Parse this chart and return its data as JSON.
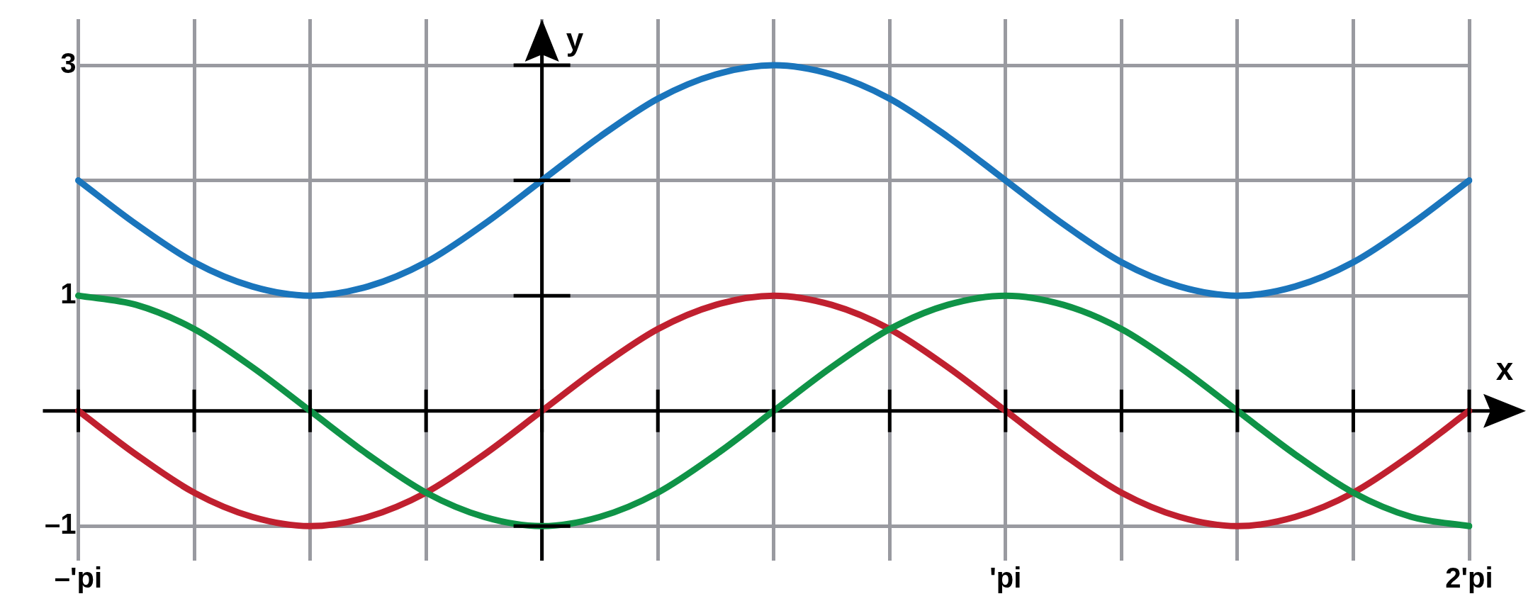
{
  "chart_data": {
    "type": "line",
    "xlabel": "x",
    "ylabel": "y",
    "categories": [
      "–'pi",
      null,
      null,
      null,
      null,
      null,
      null,
      null,
      null,
      null,
      null,
      null,
      null,
      null,
      null,
      null,
      "'pi",
      null,
      null,
      null,
      null,
      null,
      null,
      null,
      "2'pi"
    ],
    "series": [
      {
        "color": "#1a75bc",
        "values": [
          2,
          1.62,
          1.29,
          1.08,
          1,
          1.08,
          1.29,
          1.62,
          2,
          2.38,
          2.71,
          2.92,
          3,
          2.92,
          2.71,
          2.38,
          2,
          1.62,
          1.29,
          1.08,
          1,
          1.08,
          1.29,
          1.62,
          2
        ]
      },
      {
        "color": "#0f9347",
        "values": [
          1,
          0.92,
          0.71,
          0.38,
          0,
          -0.38,
          -0.71,
          -0.92,
          -1,
          -0.92,
          -0.71,
          -0.38,
          0,
          0.38,
          0.71,
          0.92,
          1,
          0.92,
          0.71,
          0.38,
          0,
          -0.38,
          -0.71,
          -0.92,
          -1
        ]
      },
      {
        "color": "#c0202f",
        "values": [
          0,
          -0.38,
          -0.71,
          -0.92,
          -1,
          -0.92,
          -0.71,
          -0.38,
          0,
          0.38,
          0.71,
          0.92,
          1,
          0.92,
          0.71,
          0.38,
          0,
          -0.38,
          -0.71,
          -0.92,
          -1,
          -0.92,
          -0.71,
          -0.38,
          0
        ]
      }
    ],
    "ylim": [
      -1.3,
      3.4
    ],
    "ref_lines": [
      {
        "axis": "y",
        "value": 0,
        "color": "#000000"
      }
    ],
    "yticks": [
      {
        "value": -1,
        "label": "–1"
      },
      {
        "value": 1,
        "label": "1"
      },
      {
        "value": 2,
        "label": null
      },
      {
        "value": 3,
        "label": "3"
      }
    ],
    "grid": true,
    "legend": false,
    "marker": "none",
    "line_style": "solid"
  }
}
